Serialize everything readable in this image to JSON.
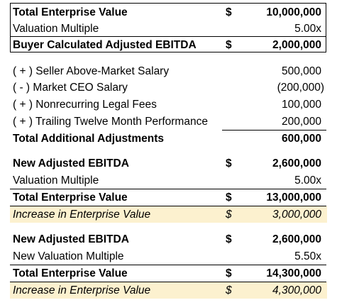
{
  "summary": {
    "total_ev": {
      "label": "Total Enterprise Value",
      "currency": "$",
      "value": "10,000,000"
    },
    "multiple": {
      "label": "Valuation Multiple",
      "value": "5.00x"
    },
    "buyer_ebitda": {
      "label": "Buyer Calculated Adjusted EBITDA",
      "currency": "$",
      "value": "2,000,000"
    }
  },
  "adjustments": {
    "items": [
      {
        "label": "( + ) Seller Above-Market Salary",
        "value": "500,000"
      },
      {
        "label": "( - ) Market CEO Salary",
        "value": "(200,000)"
      },
      {
        "label": "( + ) Nonrecurring Legal Fees",
        "value": "100,000"
      },
      {
        "label": "( + ) Trailing Twelve Month Performance",
        "value": "200,000"
      }
    ],
    "total": {
      "label": "Total Additional Adjustments",
      "value": "600,000"
    }
  },
  "scenario1": {
    "ebitda": {
      "label": "New Adjusted EBITDA",
      "currency": "$",
      "value": "2,600,000"
    },
    "multiple": {
      "label": "Valuation Multiple",
      "value": "5.00x"
    },
    "total_ev": {
      "label": "Total Enterprise Value",
      "currency": "$",
      "value": "13,000,000"
    },
    "increase": {
      "label": "Increase in Enterprise Value",
      "currency": "$",
      "value": "3,000,000"
    }
  },
  "scenario2": {
    "ebitda": {
      "label": "New Adjusted EBITDA",
      "currency": "$",
      "value": "2,600,000"
    },
    "multiple": {
      "label": "New Valuation Multiple",
      "value": "5.50x"
    },
    "total_ev": {
      "label": "Total Enterprise Value",
      "currency": "$",
      "value": "14,300,000"
    },
    "increase": {
      "label": "Increase in Enterprise Value",
      "currency": "$",
      "value": "4,300,000"
    }
  },
  "colors": {
    "highlight": "#fcf1cf",
    "text": "#000000"
  }
}
